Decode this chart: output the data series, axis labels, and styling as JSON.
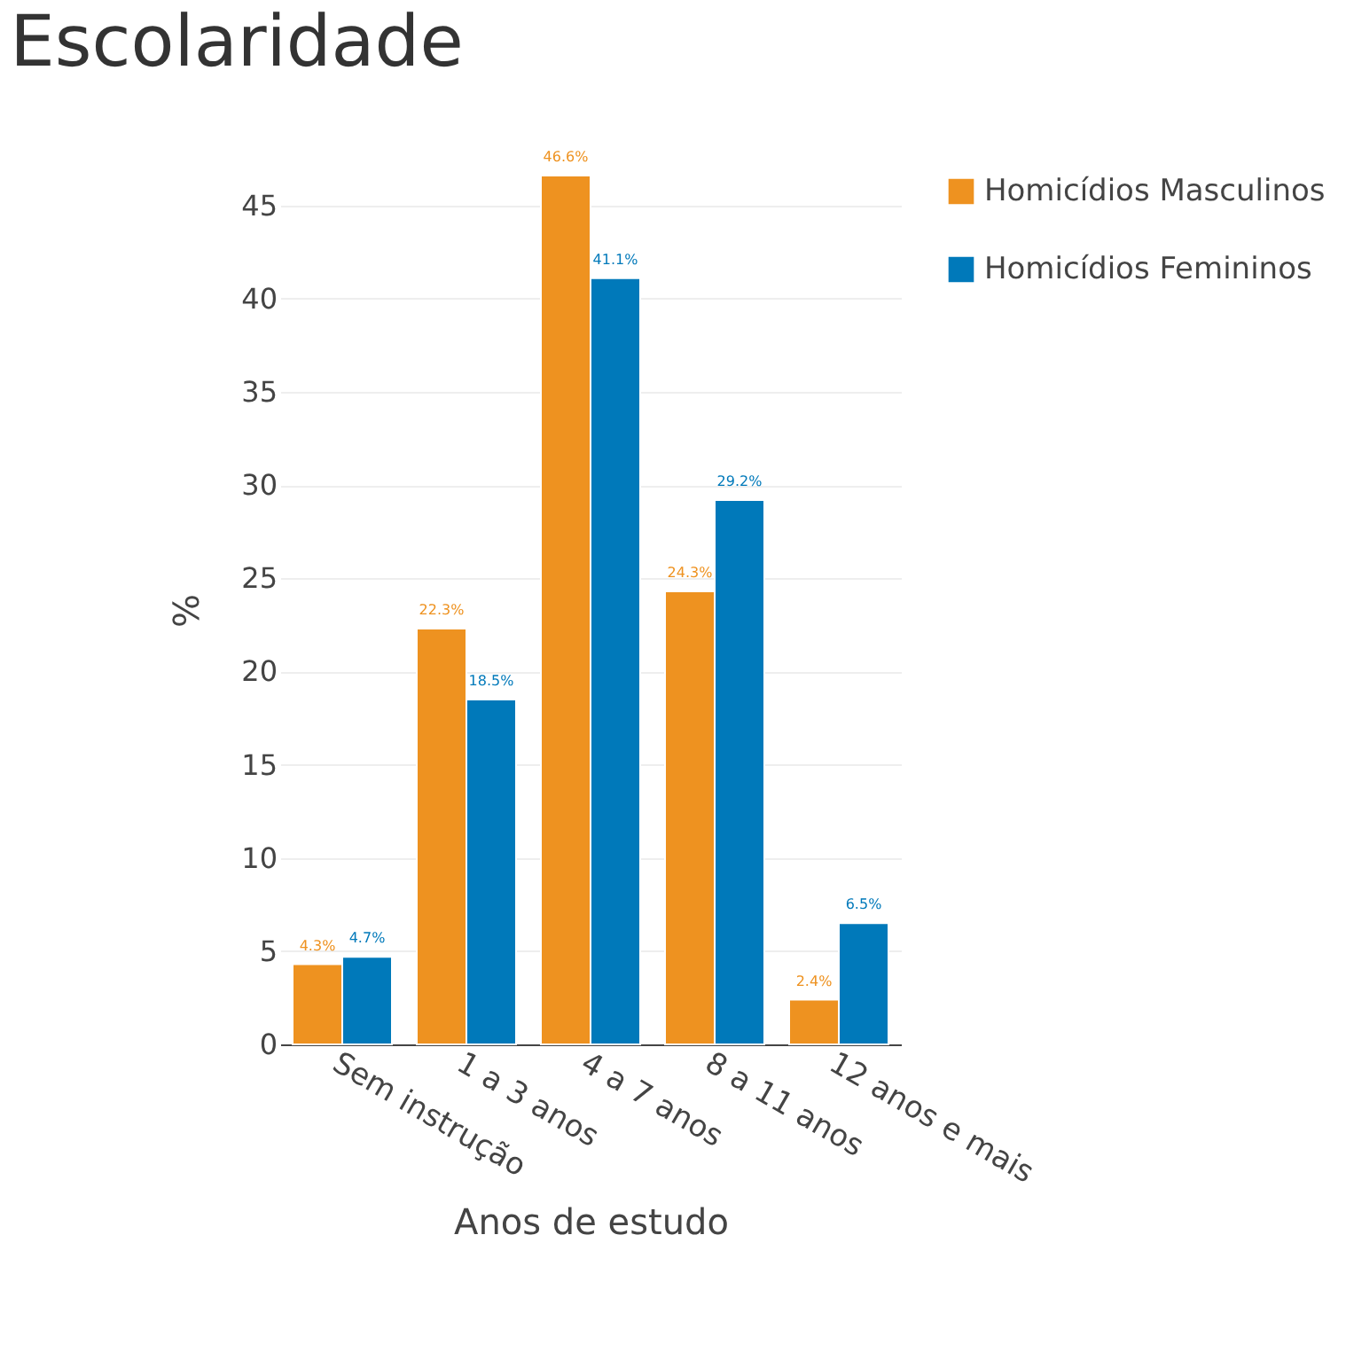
{
  "chart_data": {
    "type": "bar",
    "title": "Escolaridade",
    "xlabel": "Anos de estudo",
    "ylabel": "%",
    "categories": [
      "Sem instrução",
      "1 a 3 anos",
      "4 a 7 anos",
      "8 a 11 anos",
      "12 anos e mais"
    ],
    "series": [
      {
        "name": "Homicídios Masculinos",
        "color": "#ee9220",
        "values": [
          4.3,
          22.3,
          46.6,
          24.3,
          2.4
        ],
        "value_labels": [
          "4.3%",
          "22.3%",
          "46.6%",
          "24.3%",
          "2.4%"
        ]
      },
      {
        "name": "Homicídios Femininos",
        "color": "#0079ba",
        "values": [
          4.7,
          18.5,
          41.1,
          29.2,
          6.5
        ],
        "value_labels": [
          "4.7%",
          "18.5%",
          "41.1%",
          "29.2%",
          "6.5%"
        ]
      }
    ],
    "ylim": [
      0,
      46.6
    ],
    "yticks": [
      0,
      5,
      10,
      15,
      20,
      25,
      30,
      35,
      40,
      45
    ],
    "grid": "y",
    "legend": "top right"
  }
}
